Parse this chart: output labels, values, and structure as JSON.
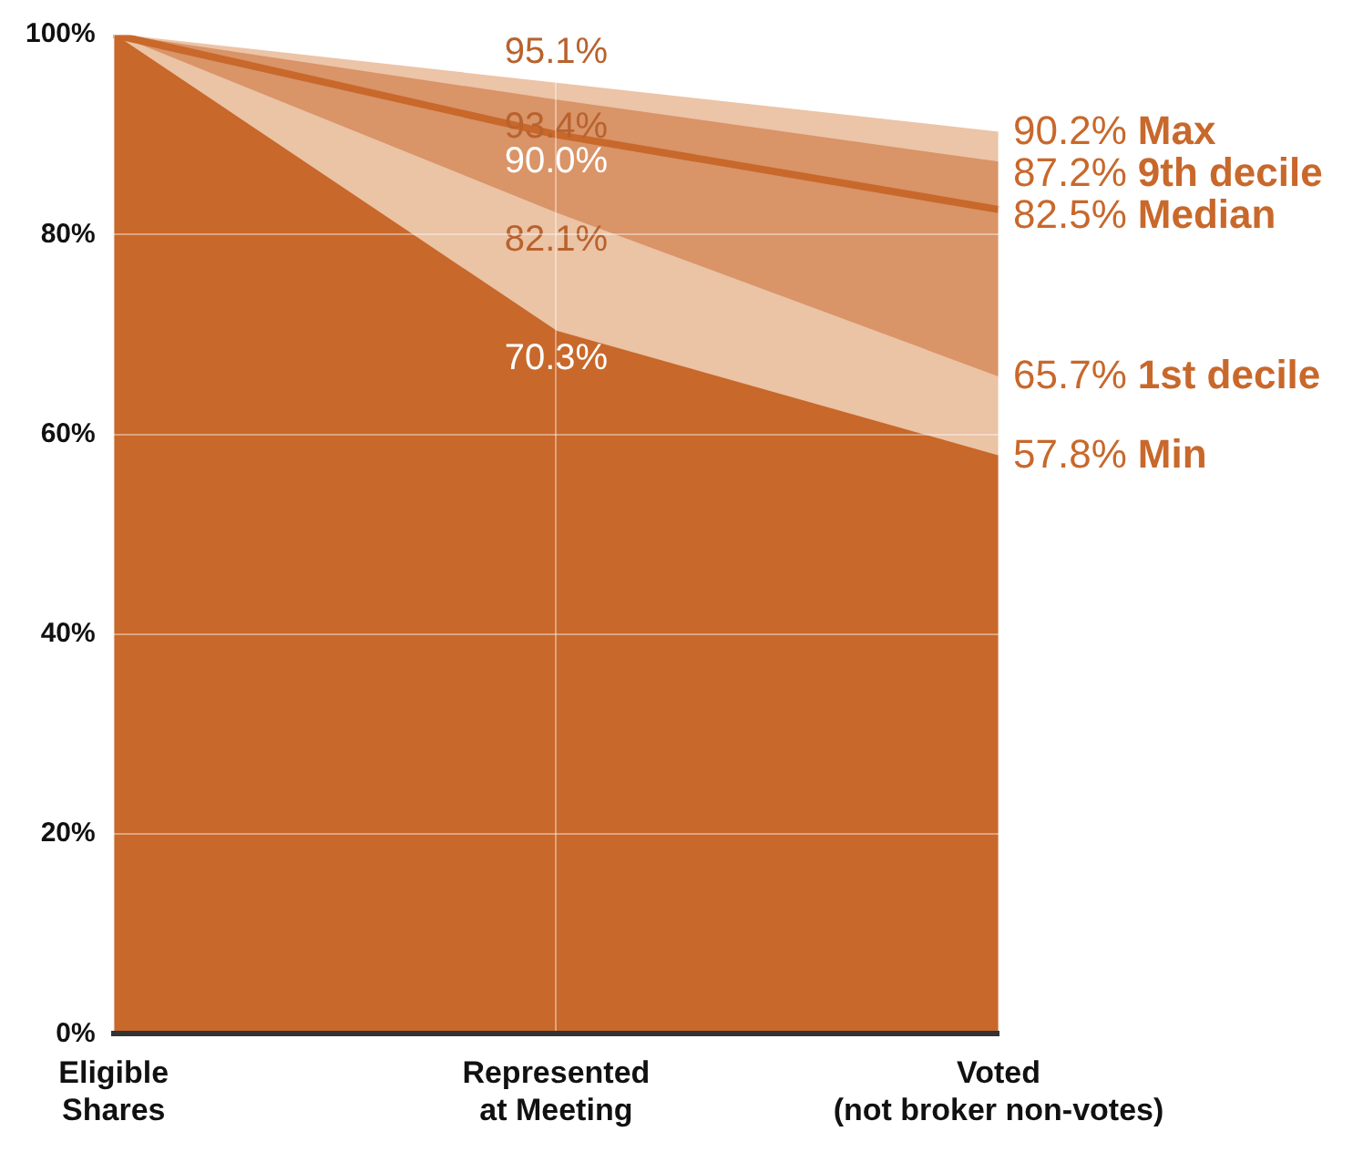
{
  "chart_data": {
    "type": "area",
    "categories": [
      "Eligible\nShares",
      "Represented\nat Meeting",
      "Voted\n(not broker non-votes)"
    ],
    "series": [
      {
        "name": "Max",
        "color": "#ecc4a7",
        "values": [
          100,
          95.1,
          90.2
        ],
        "value_labels": [
          null,
          "95.1%",
          "90.2%"
        ]
      },
      {
        "name": "9th decile",
        "color": "#d99468",
        "values": [
          100,
          93.4,
          87.2
        ],
        "value_labels": [
          null,
          "93.4%",
          "87.2%"
        ]
      },
      {
        "name": "Median",
        "type": "line",
        "color": "#c8682b",
        "values": [
          100,
          90.0,
          82.5
        ],
        "value_labels": [
          null,
          "90.0%",
          "82.5%"
        ]
      },
      {
        "name": "1st decile",
        "color": "#ebc3a5",
        "values": [
          100,
          82.1,
          65.7
        ],
        "value_labels": [
          null,
          "82.1%",
          "65.7%"
        ]
      },
      {
        "name": "Min",
        "color": "#c8682b",
        "values": [
          100,
          70.3,
          57.8
        ],
        "value_labels": [
          null,
          "70.3%",
          "57.8%"
        ]
      }
    ],
    "ylim": [
      0,
      100
    ],
    "yticks": [
      {
        "value": 0,
        "label": "0%"
      },
      {
        "value": 20,
        "label": "20%"
      },
      {
        "value": 40,
        "label": "40%"
      },
      {
        "value": 60,
        "label": "60%"
      },
      {
        "value": 80,
        "label": "80%"
      },
      {
        "value": 100,
        "label": "100%"
      }
    ],
    "grid": true,
    "legend": false
  }
}
